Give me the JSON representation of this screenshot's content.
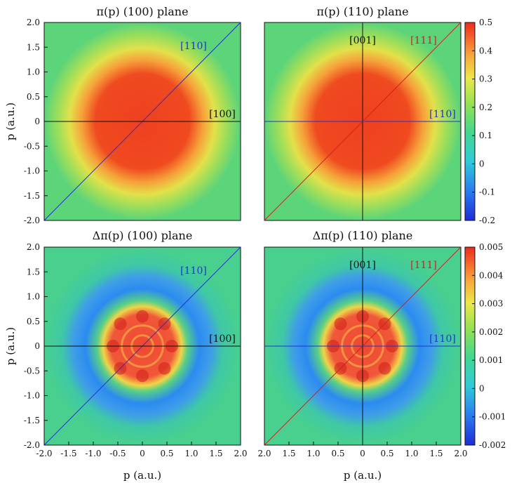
{
  "chart_data": [
    {
      "type": "heatmap",
      "title": "π(p) (100) plane",
      "xlabel": "",
      "ylabel": "p (a.u.)",
      "xlim": [
        -2.0,
        2.0
      ],
      "ylim": [
        -2.0,
        2.0
      ],
      "yticks": [
        "2.0",
        "1.5",
        "1.0",
        "0.5",
        "0",
        "-0.5",
        "-1.0",
        "-1.5",
        "-2.0"
      ],
      "xticks": [],
      "lines": [
        {
          "label": "[110]",
          "color": "#2233cc",
          "from": [
            -2.0,
            -2.0
          ],
          "to": [
            2.0,
            2.0
          ]
        },
        {
          "label": "[100]",
          "color": "#111111",
          "from": [
            -2.0,
            0
          ],
          "to": [
            2.0,
            0
          ]
        }
      ]
    },
    {
      "type": "heatmap",
      "title": "π(p) (110) plane",
      "xlabel": "",
      "ylabel": "",
      "xlim": [
        -2.0,
        2.0
      ],
      "ylim": [
        -2.0,
        2.0
      ],
      "yticks": [],
      "xticks": [],
      "lines": [
        {
          "label": "[001]",
          "color": "#111111",
          "from": [
            0,
            -2.0
          ],
          "to": [
            0,
            2.0
          ]
        },
        {
          "label": "[111]",
          "color": "#cc2222",
          "from": [
            -2.0,
            -2.0
          ],
          "to": [
            2.0,
            2.0
          ]
        },
        {
          "label": "[110]",
          "color": "#2233cc",
          "from": [
            -2.0,
            0
          ],
          "to": [
            2.0,
            0
          ]
        }
      ],
      "colorbar": {
        "min": -0.2,
        "max": 0.5,
        "ticks": [
          "0.5",
          "0.4",
          "0.3",
          "0.2",
          "0.1",
          "0",
          "-0.1",
          "-0.2"
        ]
      }
    },
    {
      "type": "heatmap",
      "title": "Δπ(p) (100) plane",
      "xlabel": "p (a.u.)",
      "ylabel": "p (a.u.)",
      "xlim": [
        -2.0,
        2.0
      ],
      "ylim": [
        -2.0,
        2.0
      ],
      "yticks": [
        "2.0",
        "1.5",
        "1.0",
        "0.5",
        "0",
        "-0.5",
        "-1.0",
        "-1.5",
        "-2.0"
      ],
      "xticks": [
        "-2.0",
        "-1.5",
        "-1.0",
        "-0.5",
        "0",
        "0.5",
        "1.0",
        "1.5",
        "2.0"
      ],
      "lines": [
        {
          "label": "[110]",
          "color": "#2233cc",
          "from": [
            -2.0,
            -2.0
          ],
          "to": [
            2.0,
            2.0
          ]
        },
        {
          "label": "[100]",
          "color": "#111111",
          "from": [
            -2.0,
            0
          ],
          "to": [
            2.0,
            0
          ]
        }
      ]
    },
    {
      "type": "heatmap",
      "title": "Δπ(p) (110) plane",
      "xlabel": "p (a.u.)",
      "ylabel": "",
      "xlim": [
        -2.0,
        2.0
      ],
      "ylim": [
        -2.0,
        2.0
      ],
      "yticks": [],
      "xticks": [
        "2.0",
        "1.5",
        "1.0",
        "0.5",
        "0",
        "0.5",
        "1.0",
        "1.5",
        "2.0"
      ],
      "lines": [
        {
          "label": "[001]",
          "color": "#111111",
          "from": [
            0,
            -2.0
          ],
          "to": [
            0,
            2.0
          ]
        },
        {
          "label": "[111]",
          "color": "#cc2222",
          "from": [
            -2.0,
            -2.0
          ],
          "to": [
            2.0,
            2.0
          ]
        },
        {
          "label": "[110]",
          "color": "#2233cc",
          "from": [
            -2.0,
            0
          ],
          "to": [
            2.0,
            0
          ]
        }
      ],
      "colorbar": {
        "min": -0.002,
        "max": 0.005,
        "ticks": [
          "0.005",
          "0.004",
          "0.003",
          "0.002",
          "0.001",
          "0",
          "-0.001",
          "-0.002"
        ]
      }
    }
  ]
}
